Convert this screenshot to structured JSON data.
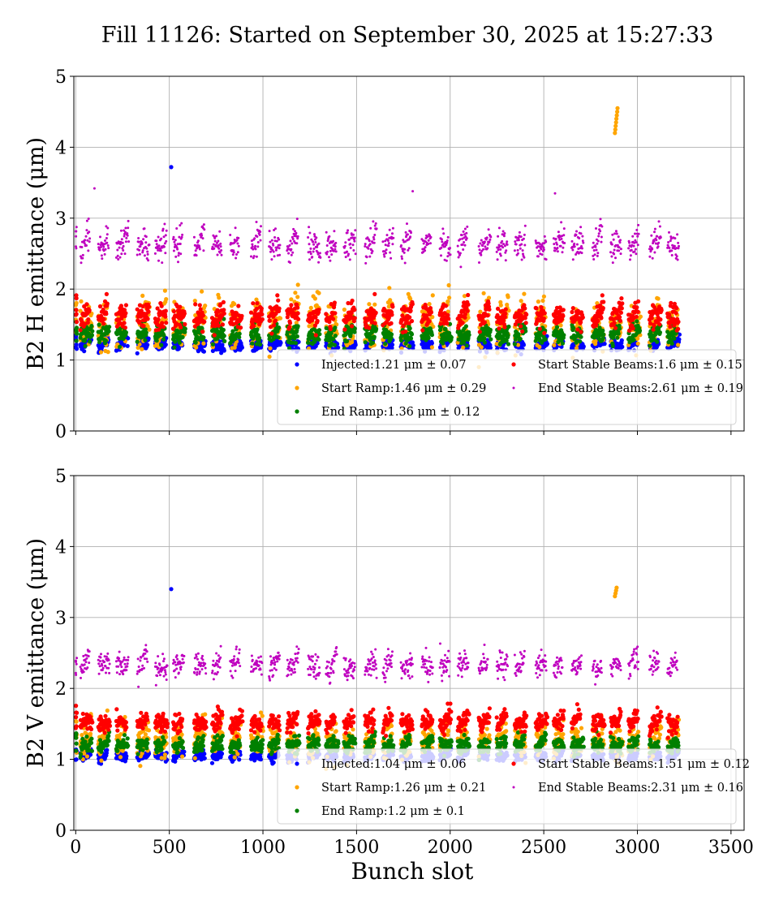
{
  "figure": {
    "title": "Fill 11126: Started on September 30, 2025 at 15:27:33"
  },
  "colors": {
    "injected": "#0000ff",
    "start_ramp": "#ffa500",
    "end_ramp": "#008000",
    "start_stable": "#ff0000",
    "end_stable": "#bf00bf"
  },
  "chart_data": [
    {
      "type": "scatter",
      "title": "Fill 11126: Started on September 30, 2025 at 15:27:33",
      "xlabel": "",
      "ylabel": "B2 H emittance (μm)",
      "xlim": [
        -10,
        3570
      ],
      "ylim": [
        0,
        5
      ],
      "x_ticks": [
        0,
        500,
        1000,
        1500,
        2000,
        2500,
        3000,
        3500
      ],
      "y_ticks": [
        0,
        1,
        2,
        3,
        4,
        5
      ],
      "grid": true,
      "legend_position": "lower right",
      "legend_columns": 2,
      "x_tick_labels_visible": false,
      "series": [
        {
          "name": "Injected",
          "key": "injected",
          "legend": "Injected:1.21 μm ± 0.07",
          "mean": 1.21,
          "std": 0.07,
          "x_range": [
            0,
            3240
          ],
          "outliers": [
            [
              510,
              3.72
            ]
          ]
        },
        {
          "name": "Start Ramp",
          "key": "start_ramp",
          "legend": "Start Ramp:1.46 μm ± 0.29",
          "mean": 1.46,
          "std": 0.29,
          "x_range": [
            0,
            3240
          ],
          "outliers": [
            [
              2880,
              4.2
            ],
            [
              2882,
              4.25
            ],
            [
              2884,
              4.3
            ],
            [
              2886,
              4.35
            ],
            [
              2888,
              4.4
            ],
            [
              2890,
              4.45
            ],
            [
              2892,
              4.5
            ],
            [
              2894,
              4.55
            ]
          ]
        },
        {
          "name": "End Ramp",
          "key": "end_ramp",
          "legend": "End Ramp:1.36 μm ± 0.12",
          "mean": 1.36,
          "std": 0.12,
          "x_range": [
            0,
            3240
          ],
          "outliers": []
        },
        {
          "name": "Start Stable Beams",
          "key": "start_stable",
          "legend": "Start Stable Beams:1.6 μm ± 0.15",
          "mean": 1.6,
          "std": 0.15,
          "x_range": [
            0,
            3240
          ],
          "outliers": []
        },
        {
          "name": "End Stable Beams",
          "key": "end_stable",
          "legend": "End Stable Beams:2.61 μm ± 0.19",
          "mean": 2.61,
          "std": 0.19,
          "x_range": [
            0,
            3240
          ],
          "outliers": [
            [
              100,
              3.42
            ],
            [
              1800,
              3.38
            ],
            [
              2560,
              3.35
            ]
          ]
        }
      ]
    },
    {
      "type": "scatter",
      "title": "",
      "xlabel": "Bunch slot",
      "ylabel": "B2 V emittance (μm)",
      "xlim": [
        -10,
        3570
      ],
      "ylim": [
        0,
        5
      ],
      "x_ticks": [
        0,
        500,
        1000,
        1500,
        2000,
        2500,
        3000,
        3500
      ],
      "y_ticks": [
        0,
        1,
        2,
        3,
        4,
        5
      ],
      "grid": true,
      "legend_position": "lower right",
      "legend_columns": 2,
      "x_tick_labels_visible": true,
      "series": [
        {
          "name": "Injected",
          "key": "injected",
          "legend": "Injected:1.04 μm ± 0.06",
          "mean": 1.04,
          "std": 0.06,
          "x_range": [
            0,
            3240
          ],
          "outliers": [
            [
              510,
              3.4
            ]
          ]
        },
        {
          "name": "Start Ramp",
          "key": "start_ramp",
          "legend": "Start Ramp:1.26 μm ± 0.21",
          "mean": 1.26,
          "std": 0.21,
          "x_range": [
            0,
            3240
          ],
          "outliers": [
            [
              2880,
              3.3
            ],
            [
              2883,
              3.34
            ],
            [
              2886,
              3.38
            ],
            [
              2889,
              3.42
            ]
          ]
        },
        {
          "name": "End Ramp",
          "key": "end_ramp",
          "legend": "End Ramp:1.2 μm ± 0.1",
          "mean": 1.2,
          "std": 0.1,
          "x_range": [
            0,
            3240
          ],
          "outliers": []
        },
        {
          "name": "Start Stable Beams",
          "key": "start_stable",
          "legend": "Start Stable Beams:1.51 μm ± 0.12",
          "mean": 1.51,
          "std": 0.12,
          "x_range": [
            0,
            3240
          ],
          "outliers": []
        },
        {
          "name": "End Stable Beams",
          "key": "end_stable",
          "legend": "End Stable Beams:2.31 μm ± 0.16",
          "mean": 2.31,
          "std": 0.16,
          "x_range": [
            0,
            3240
          ],
          "outliers": []
        }
      ]
    }
  ]
}
